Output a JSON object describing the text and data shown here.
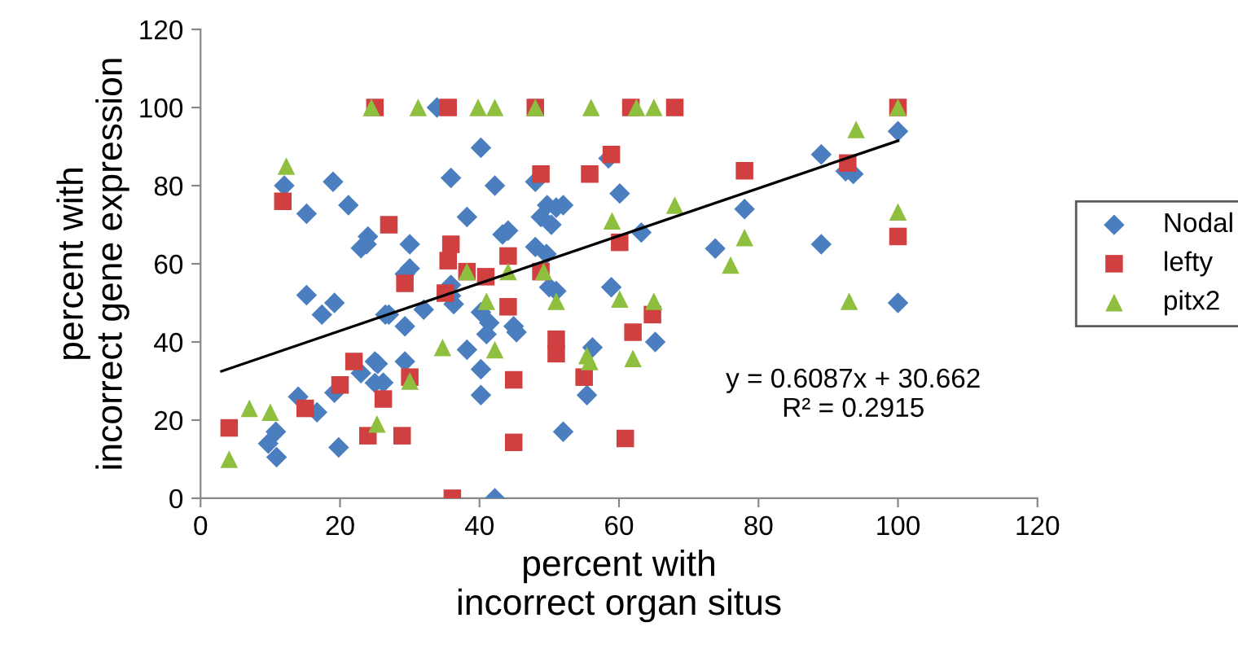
{
  "chart_data": {
    "type": "scatter",
    "xlabel": "percent with\nincorrect organ situs",
    "ylabel": "percent with\nincorrect gene expression",
    "xlim": [
      0,
      120
    ],
    "ylim": [
      0,
      120
    ],
    "xticks": [
      0,
      20,
      40,
      60,
      80,
      100,
      120
    ],
    "yticks": [
      0,
      20,
      40,
      60,
      80,
      100,
      120
    ],
    "grid": false,
    "legend": "right",
    "annotations": [
      "y = 0.6087x + 30.662\nR² = 0.2915"
    ],
    "series": [
      {
        "name": "Nodal",
        "color": "#4a7ebf",
        "marker": "diamond",
        "x": [
          12,
          15.2,
          19,
          21.2,
          23,
          24,
          15.2,
          17.4,
          19.2,
          14,
          9.7,
          10.8,
          10.9,
          16.7,
          19.8,
          19.2,
          23,
          25,
          25,
          26.5,
          33.9,
          40.2,
          35.9,
          42.2,
          48,
          38.2,
          49.7,
          51,
          52,
          48.8,
          50.3,
          60.1,
          58.5,
          63.2,
          30,
          23.8,
          43.3,
          44.1,
          48,
          49.6,
          30,
          29.3,
          35.9,
          35.9,
          36.3,
          32,
          27,
          29.3,
          40.2,
          41.4,
          41,
          44.9,
          45.3,
          50,
          51,
          58.9,
          65.2,
          38.2,
          40.2,
          40.2,
          26.2,
          25.4,
          29.3,
          56.2,
          55.4,
          52,
          42.2,
          100,
          89,
          93.6,
          92.5,
          78,
          73.8,
          89,
          100
        ],
        "values": [
          80,
          72.8,
          81,
          75,
          64,
          67,
          52,
          47,
          50,
          26,
          14,
          17,
          10.5,
          22,
          13,
          27,
          32,
          35,
          29.5,
          47,
          100,
          89.7,
          82,
          80,
          81,
          72,
          75,
          74.4,
          75,
          72,
          70,
          78,
          87,
          68,
          65,
          65,
          67.5,
          68.5,
          64.3,
          62.5,
          58.8,
          57.4,
          54.6,
          51.8,
          49.7,
          48.3,
          47,
          44,
          47.6,
          44.9,
          42,
          44,
          42.5,
          54,
          53,
          54,
          40,
          38,
          33,
          26.4,
          29.6,
          34.4,
          35,
          38.6,
          26.4,
          17,
          0,
          93.9,
          88,
          83,
          83.7,
          74,
          63.9,
          65,
          50
        ]
      },
      {
        "name": "lefty",
        "color": "#d04040",
        "marker": "square",
        "x": [
          4.1,
          11.8,
          15,
          20,
          22,
          24,
          25,
          35.5,
          48,
          61.7,
          68,
          27,
          35.9,
          35.5,
          29.3,
          38.2,
          40.9,
          44.1,
          48.8,
          55.8,
          58.9,
          60.1,
          35.1,
          44.1,
          51,
          51,
          62,
          64.8,
          55,
          44.9,
          30,
          26.2,
          28.9,
          44.9,
          60.9,
          36.1,
          48.8,
          100,
          92.8,
          78,
          100
        ],
        "values": [
          18,
          76,
          23,
          29,
          35,
          16,
          100,
          100,
          100,
          100,
          100,
          70,
          65,
          60.8,
          55,
          58,
          56.7,
          62,
          83,
          83,
          88,
          65.5,
          52.5,
          49,
          40.7,
          37,
          42.5,
          47,
          31,
          30.3,
          31,
          25.4,
          16,
          14.3,
          15.3,
          0,
          58,
          100,
          85.8,
          83.8,
          67
        ]
      },
      {
        "name": "pitx2",
        "color": "#8fbf3f",
        "marker": "triangle",
        "x": [
          4.1,
          7,
          10,
          12.3,
          25.3,
          24.5,
          31.2,
          39.8,
          42.2,
          48,
          56,
          62.5,
          65,
          38.2,
          44.1,
          49.2,
          41,
          51,
          34.7,
          42.2,
          55.4,
          55.8,
          62,
          30,
          59,
          68,
          60.1,
          65,
          100,
          94,
          78,
          76,
          100,
          93
        ],
        "values": [
          10,
          23,
          22,
          85,
          19,
          100,
          100,
          100,
          100,
          100,
          100,
          100,
          100,
          58,
          58,
          58,
          50.4,
          50.4,
          38.6,
          38,
          36.5,
          35,
          35.8,
          30,
          71,
          75,
          51,
          50.4,
          100,
          94.4,
          66.7,
          59.7,
          73.3,
          50.4
        ]
      },
      {
        "type": "line",
        "color": "#000000",
        "marker": "none",
        "x": [
          3,
          100
        ],
        "values": [
          32.5,
          91.5
        ]
      }
    ]
  }
}
